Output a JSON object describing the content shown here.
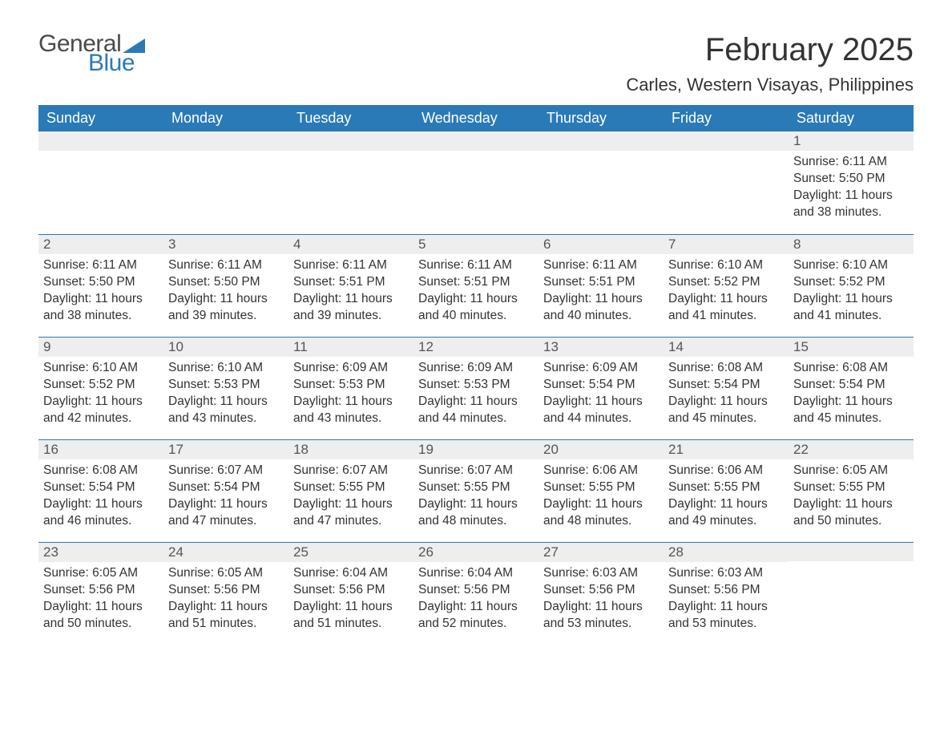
{
  "logo": {
    "text1": "General",
    "text2": "Blue",
    "triangle_color": "#2a7ab8"
  },
  "title": "February 2025",
  "location": "Carles, Western Visayas, Philippines",
  "colors": {
    "header_bg": "#2a7ab8",
    "header_text": "#ffffff",
    "daynum_bg": "#eeeeee",
    "row_border": "#2a7ab8",
    "body_text": "#333333",
    "page_bg": "#ffffff"
  },
  "typography": {
    "title_fontsize": 40,
    "location_fontsize": 22,
    "header_fontsize": 18,
    "daynum_fontsize": 17,
    "body_fontsize": 15.5
  },
  "weekdays": [
    "Sunday",
    "Monday",
    "Tuesday",
    "Wednesday",
    "Thursday",
    "Friday",
    "Saturday"
  ],
  "first_weekday_index": 6,
  "days": [
    {
      "n": 1,
      "sunrise": "6:11 AM",
      "sunset": "5:50 PM",
      "daylight": "11 hours and 38 minutes."
    },
    {
      "n": 2,
      "sunrise": "6:11 AM",
      "sunset": "5:50 PM",
      "daylight": "11 hours and 38 minutes."
    },
    {
      "n": 3,
      "sunrise": "6:11 AM",
      "sunset": "5:50 PM",
      "daylight": "11 hours and 39 minutes."
    },
    {
      "n": 4,
      "sunrise": "6:11 AM",
      "sunset": "5:51 PM",
      "daylight": "11 hours and 39 minutes."
    },
    {
      "n": 5,
      "sunrise": "6:11 AM",
      "sunset": "5:51 PM",
      "daylight": "11 hours and 40 minutes."
    },
    {
      "n": 6,
      "sunrise": "6:11 AM",
      "sunset": "5:51 PM",
      "daylight": "11 hours and 40 minutes."
    },
    {
      "n": 7,
      "sunrise": "6:10 AM",
      "sunset": "5:52 PM",
      "daylight": "11 hours and 41 minutes."
    },
    {
      "n": 8,
      "sunrise": "6:10 AM",
      "sunset": "5:52 PM",
      "daylight": "11 hours and 41 minutes."
    },
    {
      "n": 9,
      "sunrise": "6:10 AM",
      "sunset": "5:52 PM",
      "daylight": "11 hours and 42 minutes."
    },
    {
      "n": 10,
      "sunrise": "6:10 AM",
      "sunset": "5:53 PM",
      "daylight": "11 hours and 43 minutes."
    },
    {
      "n": 11,
      "sunrise": "6:09 AM",
      "sunset": "5:53 PM",
      "daylight": "11 hours and 43 minutes."
    },
    {
      "n": 12,
      "sunrise": "6:09 AM",
      "sunset": "5:53 PM",
      "daylight": "11 hours and 44 minutes."
    },
    {
      "n": 13,
      "sunrise": "6:09 AM",
      "sunset": "5:54 PM",
      "daylight": "11 hours and 44 minutes."
    },
    {
      "n": 14,
      "sunrise": "6:08 AM",
      "sunset": "5:54 PM",
      "daylight": "11 hours and 45 minutes."
    },
    {
      "n": 15,
      "sunrise": "6:08 AM",
      "sunset": "5:54 PM",
      "daylight": "11 hours and 45 minutes."
    },
    {
      "n": 16,
      "sunrise": "6:08 AM",
      "sunset": "5:54 PM",
      "daylight": "11 hours and 46 minutes."
    },
    {
      "n": 17,
      "sunrise": "6:07 AM",
      "sunset": "5:54 PM",
      "daylight": "11 hours and 47 minutes."
    },
    {
      "n": 18,
      "sunrise": "6:07 AM",
      "sunset": "5:55 PM",
      "daylight": "11 hours and 47 minutes."
    },
    {
      "n": 19,
      "sunrise": "6:07 AM",
      "sunset": "5:55 PM",
      "daylight": "11 hours and 48 minutes."
    },
    {
      "n": 20,
      "sunrise": "6:06 AM",
      "sunset": "5:55 PM",
      "daylight": "11 hours and 48 minutes."
    },
    {
      "n": 21,
      "sunrise": "6:06 AM",
      "sunset": "5:55 PM",
      "daylight": "11 hours and 49 minutes."
    },
    {
      "n": 22,
      "sunrise": "6:05 AM",
      "sunset": "5:55 PM",
      "daylight": "11 hours and 50 minutes."
    },
    {
      "n": 23,
      "sunrise": "6:05 AM",
      "sunset": "5:56 PM",
      "daylight": "11 hours and 50 minutes."
    },
    {
      "n": 24,
      "sunrise": "6:05 AM",
      "sunset": "5:56 PM",
      "daylight": "11 hours and 51 minutes."
    },
    {
      "n": 25,
      "sunrise": "6:04 AM",
      "sunset": "5:56 PM",
      "daylight": "11 hours and 51 minutes."
    },
    {
      "n": 26,
      "sunrise": "6:04 AM",
      "sunset": "5:56 PM",
      "daylight": "11 hours and 52 minutes."
    },
    {
      "n": 27,
      "sunrise": "6:03 AM",
      "sunset": "5:56 PM",
      "daylight": "11 hours and 53 minutes."
    },
    {
      "n": 28,
      "sunrise": "6:03 AM",
      "sunset": "5:56 PM",
      "daylight": "11 hours and 53 minutes."
    }
  ],
  "labels": {
    "sunrise": "Sunrise: ",
    "sunset": "Sunset: ",
    "daylight": "Daylight: "
  }
}
